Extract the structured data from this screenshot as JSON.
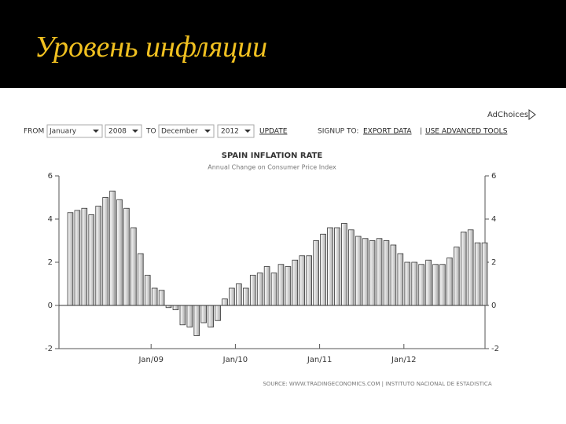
{
  "slide_title": "Уровень инфляции",
  "controls": {
    "adchoices": "AdChoices",
    "from": "FROM",
    "from_month": "January",
    "from_year": "2008",
    "to": "TO",
    "to_month": "December",
    "to_year": "2012",
    "update": "UPDATE",
    "signup": "SIGNUP TO:",
    "export": "EXPORT DATA",
    "separator": "|",
    "advanced": "USE ADVANCED TOOLS"
  },
  "source": "SOURCE: WWW.TRADINGECONOMICS.COM | INSTITUTO NACIONAL DE ESTADISTICA",
  "chart_data": {
    "type": "bar",
    "title": "SPAIN INFLATION RATE",
    "subtitle": "Annual Change on Consumer Price Index",
    "categories": [
      null,
      null,
      null,
      null,
      null,
      null,
      null,
      null,
      null,
      null,
      null,
      null,
      "Jan/09",
      null,
      null,
      null,
      null,
      null,
      null,
      null,
      null,
      null,
      null,
      null,
      "Jan/10",
      null,
      null,
      null,
      null,
      null,
      null,
      null,
      null,
      null,
      null,
      null,
      "Jan/11",
      null,
      null,
      null,
      null,
      null,
      null,
      null,
      null,
      null,
      null,
      null,
      "Jan/12",
      null,
      null,
      null,
      null,
      null,
      null,
      null,
      null,
      null,
      null,
      null
    ],
    "values": [
      4.3,
      4.4,
      4.5,
      4.2,
      4.6,
      5.0,
      5.3,
      4.9,
      4.5,
      3.6,
      2.4,
      1.4,
      0.8,
      0.7,
      -0.1,
      -0.2,
      -0.9,
      -1.0,
      -1.4,
      -0.8,
      -1.0,
      -0.7,
      0.3,
      0.8,
      1.0,
      0.8,
      1.4,
      1.5,
      1.8,
      1.5,
      1.9,
      1.8,
      2.1,
      2.3,
      2.3,
      3.0,
      3.3,
      3.6,
      3.6,
      3.8,
      3.5,
      3.2,
      3.1,
      3.0,
      3.1,
      3.0,
      2.8,
      2.4,
      2.0,
      2.0,
      1.9,
      2.1,
      1.9,
      1.9,
      2.2,
      2.7,
      3.4,
      3.5,
      2.9,
      2.9
    ],
    "color": "#d0d0d0",
    "ylim": [
      -2,
      6
    ],
    "yticks": [
      -2,
      0,
      2,
      4,
      6
    ],
    "right_axis": true
  }
}
